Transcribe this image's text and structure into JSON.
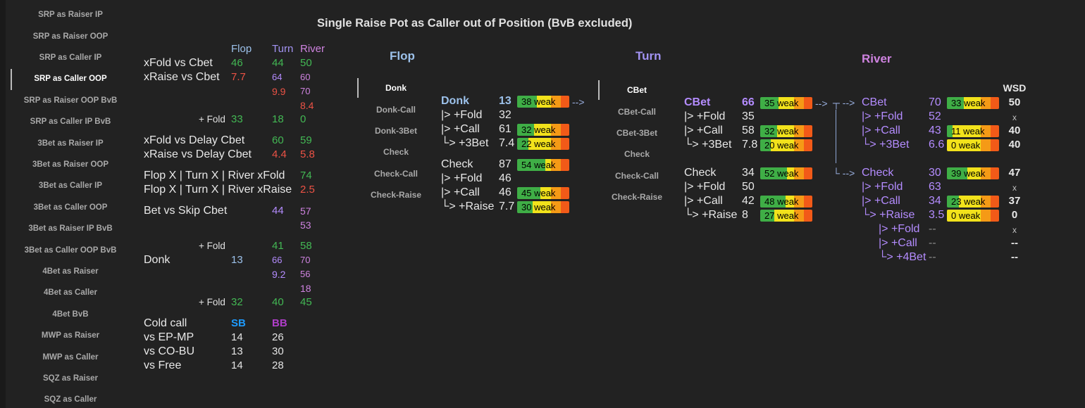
{
  "sidebar": {
    "items": [
      {
        "label": "SRP as Raiser IP",
        "active": false
      },
      {
        "label": "SRP as Raiser OOP",
        "active": false
      },
      {
        "label": "SRP as Caller IP",
        "active": false
      },
      {
        "label": "SRP as Caller OOP",
        "active": true
      },
      {
        "label": "SRP as Raiser OOP BvB",
        "active": false
      },
      {
        "label": "SRP as Caller IP BvB",
        "active": false
      },
      {
        "label": "3Bet as Raiser IP",
        "active": false
      },
      {
        "label": "3Bet as Raiser OOP",
        "active": false
      },
      {
        "label": "3Bet as Caller IP",
        "active": false
      },
      {
        "label": "3Bet as Caller OOP",
        "active": false
      },
      {
        "label": "3Bet as Raiser IP BvB",
        "active": false
      },
      {
        "label": "3Bet as Caller OOP BvB",
        "active": false
      },
      {
        "label": "4Bet as Raiser",
        "active": false
      },
      {
        "label": "4Bet as Caller",
        "active": false
      },
      {
        "label": "4Bet BvB",
        "active": false
      },
      {
        "label": "MWP as Raiser",
        "active": false
      },
      {
        "label": "MWP as Caller",
        "active": false
      },
      {
        "label": "SQZ as Raiser",
        "active": false
      },
      {
        "label": "SQZ as Caller",
        "active": false
      }
    ]
  },
  "title": "Single Raise Pot as Caller out of Position (BvB excluded)",
  "colors": {
    "green": "#43b854",
    "red": "#ec5245",
    "purple": "#b48cff",
    "pink": "#cf83e0",
    "blue": "#9cc1ea",
    "sb": "#1e9bff",
    "bb": "#b03ec9"
  },
  "stats": {
    "headers": {
      "flop": "Flop",
      "turn": "Turn",
      "river": "River"
    },
    "xfold_cbet": {
      "label": "xFold vs Cbet",
      "flop": "46",
      "turn": "44",
      "river": "50"
    },
    "xraise_cbet": {
      "label": "xRaise vs Cbet",
      "flop": "7.7",
      "turn": "64",
      "river": "60"
    },
    "xraise_cbet_2": {
      "turn": "9.9",
      "river": "70"
    },
    "xraise_cbet_3": {
      "river": "8.4"
    },
    "xraise_fold": {
      "label": "+ Fold",
      "flop": "33",
      "turn": "18",
      "river": "0"
    },
    "xfold_delay": {
      "label": "xFold vs Delay Cbet",
      "turn": "60",
      "river": "59"
    },
    "xraise_delay": {
      "label": "xRaise vs Delay Cbet",
      "turn": "4.4",
      "river": "5.8"
    },
    "line_xfold": {
      "label": "Flop X | Turn X | River xFold",
      "river": "74"
    },
    "line_xraise": {
      "label": "Flop X | Turn X | River xRaise",
      "river": "2.5"
    },
    "bet_skip": {
      "label": "Bet vs Skip Cbet",
      "turn": "44",
      "river": "57"
    },
    "bet_skip_2": {
      "river": "53"
    },
    "donk_fold_a": {
      "label": "+ Fold",
      "turn": "41",
      "river": "58"
    },
    "donk": {
      "label": "Donk",
      "flop": "13",
      "turn": "66",
      "river": "70"
    },
    "donk_2": {
      "turn": "9.2",
      "river": "56"
    },
    "donk_3": {
      "river": "18"
    },
    "donk_fold_b": {
      "label": "+ Fold",
      "flop": "32",
      "turn": "40",
      "river": "45"
    },
    "coldcall": {
      "label": "Cold call",
      "sb": "SB",
      "bb": "BB",
      "rows": [
        {
          "label": "vs EP-MP",
          "sb": "14",
          "bb": "26"
        },
        {
          "label": "vs CO-BU",
          "sb": "13",
          "bb": "30"
        },
        {
          "label": "vs Free",
          "sb": "14",
          "bb": "28"
        }
      ]
    }
  },
  "flop": {
    "header": "Flop",
    "nav": [
      {
        "label": "Donk",
        "active": true
      },
      {
        "label": "Donk-Call",
        "active": false
      },
      {
        "label": "Donk-3Bet",
        "active": false
      },
      {
        "label": "Check",
        "active": false
      },
      {
        "label": "Check-Call",
        "active": false
      },
      {
        "label": "Check-Raise",
        "active": false
      }
    ],
    "rows": [
      {
        "label": "Donk",
        "value": "13",
        "bar": {
          "pct": 38,
          "text": "weak"
        },
        "arrow": "-->"
      },
      {
        "label": "|> +Fold",
        "value": "32"
      },
      {
        "label": "|> +Call",
        "value": "61",
        "bar": {
          "pct": 32,
          "text": "weak"
        }
      },
      {
        "label": "└> +3Bet",
        "value": "7.4",
        "bar": {
          "pct": 22,
          "text": "weak"
        }
      },
      {
        "label": "Check",
        "value": "87",
        "bar": {
          "pct": 54,
          "text": "weak"
        }
      },
      {
        "label": "|> +Fold",
        "value": "46"
      },
      {
        "label": "|> +Call",
        "value": "46",
        "bar": {
          "pct": 45,
          "text": "weak"
        }
      },
      {
        "label": "└> +Raise",
        "value": "7.7",
        "bar": {
          "pct": 30,
          "text": "weak"
        }
      }
    ]
  },
  "turn": {
    "header": "Turn",
    "nav": [
      {
        "label": "CBet",
        "active": true
      },
      {
        "label": "CBet-Call",
        "active": false
      },
      {
        "label": "CBet-3Bet",
        "active": false
      },
      {
        "label": "Check",
        "active": false
      },
      {
        "label": "Check-Call",
        "active": false
      },
      {
        "label": "Check-Raise",
        "active": false
      }
    ],
    "rows": [
      {
        "label": "CBet",
        "value": "66",
        "bar": {
          "pct": 35,
          "text": "weak"
        },
        "arrow": "-->"
      },
      {
        "label": "|> +Fold",
        "value": "35"
      },
      {
        "label": "|> +Call",
        "value": "58",
        "bar": {
          "pct": 32,
          "text": "weak"
        }
      },
      {
        "label": "└> +3Bet",
        "value": "7.8",
        "bar": {
          "pct": 20,
          "text": "weak"
        }
      },
      {
        "label": "Check",
        "value": "34",
        "bar": {
          "pct": 52,
          "text": "weak"
        }
      },
      {
        "label": "|> +Fold",
        "value": "50"
      },
      {
        "label": "|> +Call",
        "value": "42",
        "bar": {
          "pct": 48,
          "text": "weak"
        }
      },
      {
        "label": "└> +Raise",
        "value": "8",
        "bar": {
          "pct": 27,
          "text": "weak"
        }
      }
    ]
  },
  "river": {
    "header": "River",
    "wsd_header": "WSD",
    "connector": {
      "top": "┬  -->",
      "bottom": "└  -->"
    },
    "rows": [
      {
        "label": "CBet",
        "value": "70",
        "bar": {
          "pct": 33,
          "text": "weak"
        },
        "wsd": "50"
      },
      {
        "label": "|> +Fold",
        "value": "52",
        "wsd": "x"
      },
      {
        "label": "|> +Call",
        "value": "43",
        "bar": {
          "pct": 11,
          "text": "weak"
        },
        "wsd": "40"
      },
      {
        "label": "└> +3Bet",
        "value": "6.6",
        "bar": {
          "pct": 0,
          "text": "weak"
        },
        "wsd": "40"
      },
      {
        "label": "Check",
        "value": "30",
        "bar": {
          "pct": 39,
          "text": "weak"
        },
        "wsd": "47"
      },
      {
        "label": "|> +Fold",
        "value": "63",
        "wsd": "x"
      },
      {
        "label": "|> +Call",
        "value": "34",
        "bar": {
          "pct": 23,
          "text": "weak"
        },
        "wsd": "37"
      },
      {
        "label": "└> +Raise",
        "value": "3.5",
        "bar": {
          "pct": 0,
          "text": "weak"
        },
        "wsd": "0"
      },
      {
        "label": "|> +Fold",
        "value": "--",
        "wsd": "x"
      },
      {
        "label": "|> +Call",
        "value": "--",
        "wsd": "--"
      },
      {
        "label": "└> +4Bet",
        "value": "--",
        "wsd": "--"
      }
    ]
  }
}
